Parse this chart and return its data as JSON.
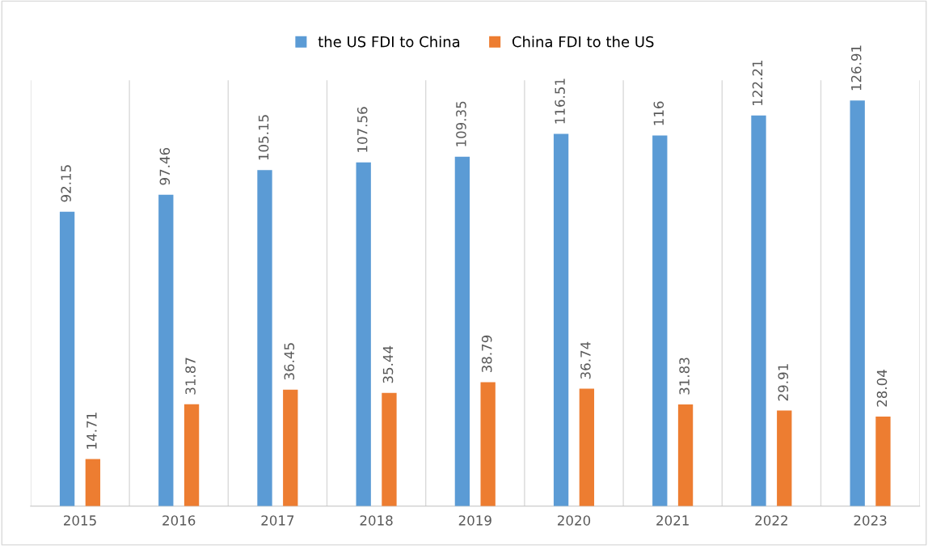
{
  "chart_data": {
    "type": "bar",
    "categories": [
      "2015",
      "2016",
      "2017",
      "2018",
      "2019",
      "2020",
      "2021",
      "2022",
      "2023"
    ],
    "series": [
      {
        "name": "the US FDI to China",
        "color": "#5b9bd5",
        "values": [
          92.15,
          97.46,
          105.15,
          107.56,
          109.35,
          116.51,
          116,
          122.21,
          126.91
        ]
      },
      {
        "name": "China FDI to the US",
        "color": "#ed7d31",
        "values": [
          14.71,
          31.87,
          36.45,
          35.44,
          38.79,
          36.74,
          31.83,
          29.91,
          28.04
        ]
      }
    ],
    "data_labels": true,
    "grid": "x",
    "legend": "top",
    "tick_labels": "x"
  }
}
